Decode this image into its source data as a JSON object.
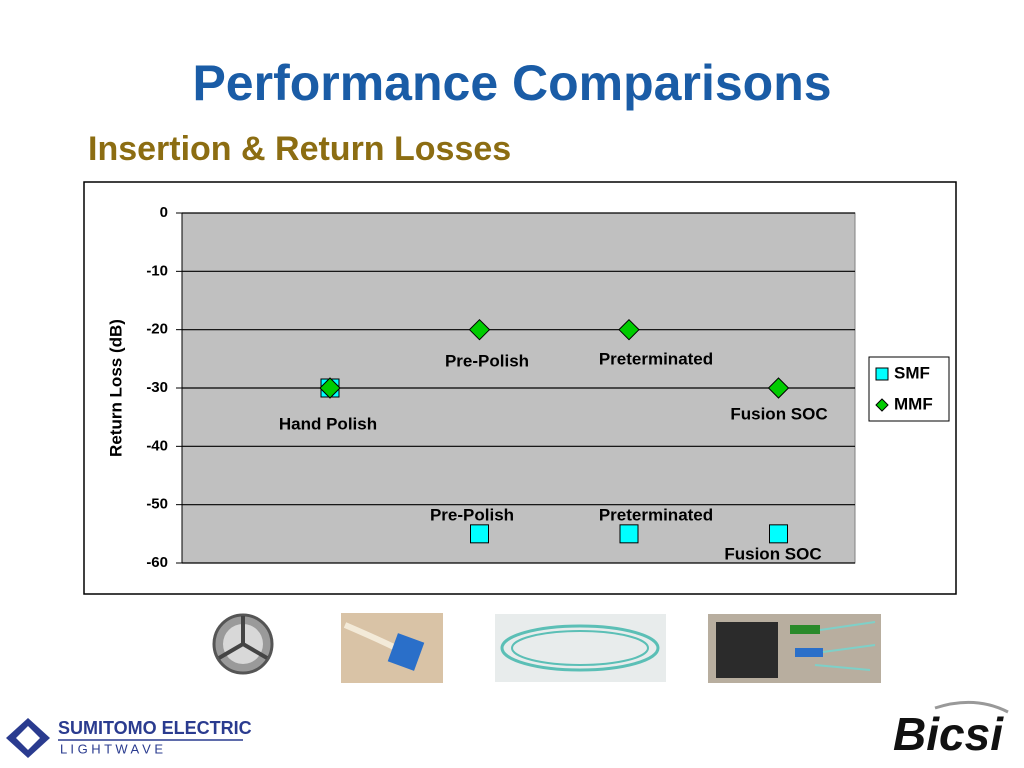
{
  "title": "Performance Comparisons",
  "subtitle": "Insertion & Return Losses",
  "chart_data": {
    "type": "scatter",
    "categories": [
      null,
      null,
      null,
      null
    ],
    "ylabel": "Return Loss (dB)",
    "ylim": [
      -60,
      0
    ],
    "yticks": [
      0,
      -10,
      -20,
      -30,
      -40,
      -50,
      -60
    ],
    "grid": true,
    "legend": "right",
    "series": [
      {
        "name": "SMF",
        "color": "#00ffff",
        "marker": "square",
        "values": [
          -30,
          -55,
          -55,
          -55
        ]
      },
      {
        "name": "MMF",
        "color": "#00cc00",
        "marker": "diamond",
        "values": [
          -30,
          -20,
          -20,
          -30
        ]
      }
    ],
    "annotations": [
      "Hand Polish",
      "Pre-Polish",
      "Preterminated",
      "Fusion SOC",
      "Pre-Polish",
      "Preterminated",
      "Fusion SOC"
    ]
  },
  "footer": {
    "company": "SUMITOMO ELECTRIC",
    "division": "L I G H T W A V E",
    "logo": "Bicsi"
  }
}
